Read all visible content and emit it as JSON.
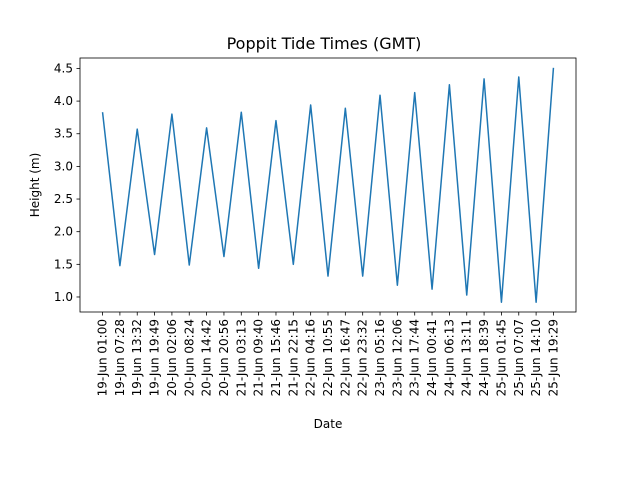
{
  "chart_data": {
    "type": "line",
    "title": "Poppit Tide Times (GMT)",
    "xlabel": "Date",
    "ylabel": "Height (m)",
    "ylim": [
      0.77,
      4.66
    ],
    "yticks": [
      1.0,
      1.5,
      2.0,
      2.5,
      3.0,
      3.5,
      4.0,
      4.5
    ],
    "grid": false,
    "legend": "none",
    "line_color": "#1f77b4",
    "x": [
      "19-Jun 01:00",
      "19-Jun 07:28",
      "19-Jun 13:32",
      "19-Jun 19:49",
      "20-Jun 02:06",
      "20-Jun 08:24",
      "20-Jun 14:42",
      "20-Jun 20:56",
      "21-Jun 03:13",
      "21-Jun 09:40",
      "21-Jun 15:46",
      "21-Jun 22:15",
      "22-Jun 04:16",
      "22-Jun 10:55",
      "22-Jun 16:47",
      "22-Jun 23:32",
      "23-Jun 05:16",
      "23-Jun 12:06",
      "23-Jun 17:44",
      "24-Jun 00:41",
      "24-Jun 06:13",
      "24-Jun 13:11",
      "24-Jun 18:39",
      "25-Jun 01:45",
      "25-Jun 07:07",
      "25-Jun 14:10",
      "25-Jun 19:29"
    ],
    "series": [
      {
        "values": [
          3.83,
          1.48,
          3.57,
          1.65,
          3.8,
          1.49,
          3.59,
          1.62,
          3.83,
          1.44,
          3.7,
          1.5,
          3.94,
          1.32,
          3.89,
          1.32,
          4.09,
          1.18,
          4.13,
          1.12,
          4.25,
          1.03,
          4.34,
          0.92,
          4.37,
          0.92,
          4.51
        ]
      }
    ]
  }
}
